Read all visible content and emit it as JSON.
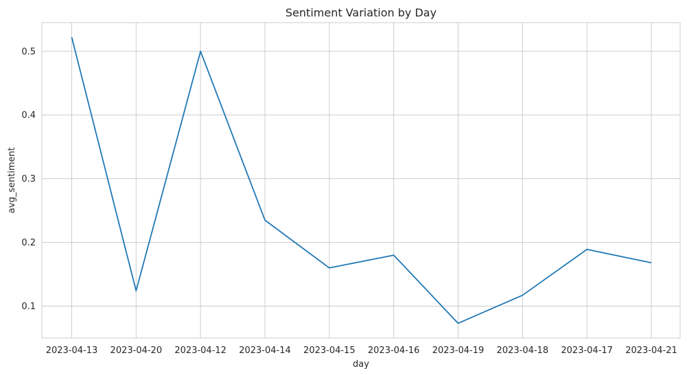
{
  "chart_data": {
    "type": "line",
    "title": "Sentiment Variation by Day",
    "xlabel": "day",
    "ylabel": "avg_sentiment",
    "categories": [
      "2023-04-13",
      "2023-04-20",
      "2023-04-12",
      "2023-04-14",
      "2023-04-15",
      "2023-04-16",
      "2023-04-19",
      "2023-04-18",
      "2023-04-17",
      "2023-04-21"
    ],
    "series": [
      {
        "values": [
          0.522,
          0.124,
          0.5,
          0.235,
          0.16,
          0.18,
          0.073,
          0.117,
          0.189,
          0.168
        ],
        "color": "#1f77b4"
      }
    ],
    "ylim": [
      0.05,
      0.545
    ],
    "yticks": [
      0.1,
      0.2,
      0.3,
      0.4,
      0.5
    ],
    "ytick_labels": [
      "0.1",
      "0.2",
      "0.3",
      "0.4",
      "0.5"
    ],
    "grid": true,
    "legend": "none"
  }
}
